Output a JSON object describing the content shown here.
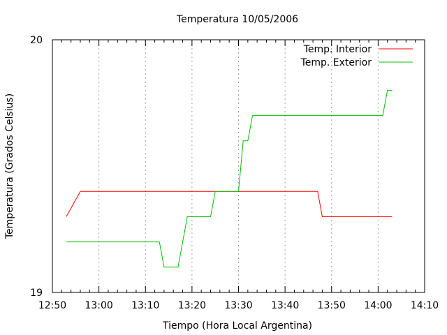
{
  "chart_data": {
    "type": "line",
    "title": "Temperatura 10/05/2006",
    "xlabel": "Tiempo (Hora Local Argentina)",
    "ylabel": "Temperatura (Grados Celsius)",
    "xlim": [
      "12:50",
      "14:10"
    ],
    "ylim": [
      19,
      20
    ],
    "x_ticks": [
      "12:50",
      "13:00",
      "13:10",
      "13:20",
      "13:30",
      "13:40",
      "13:50",
      "14:00",
      "14:10"
    ],
    "y_ticks": [
      "19",
      "20"
    ],
    "grid": "vertical dotted",
    "legend_position": "top-right",
    "series": [
      {
        "name": "Temp. Interior",
        "color": "#ff0000",
        "x": [
          "12:53",
          "12:56",
          "13:47",
          "13:48",
          "14:03"
        ],
        "y": [
          19.3,
          19.4,
          19.4,
          19.3,
          19.3
        ]
      },
      {
        "name": "Temp. Exterior",
        "color": "#00c000",
        "x": [
          "12:53",
          "13:13",
          "13:14",
          "13:17",
          "13:19",
          "13:24",
          "13:25",
          "13:30",
          "13:31",
          "13:32",
          "13:33",
          "14:01",
          "14:02",
          "14:03"
        ],
        "y": [
          19.2,
          19.2,
          19.1,
          19.1,
          19.3,
          19.3,
          19.4,
          19.4,
          19.6,
          19.6,
          19.7,
          19.7,
          19.8,
          19.8
        ]
      }
    ]
  }
}
